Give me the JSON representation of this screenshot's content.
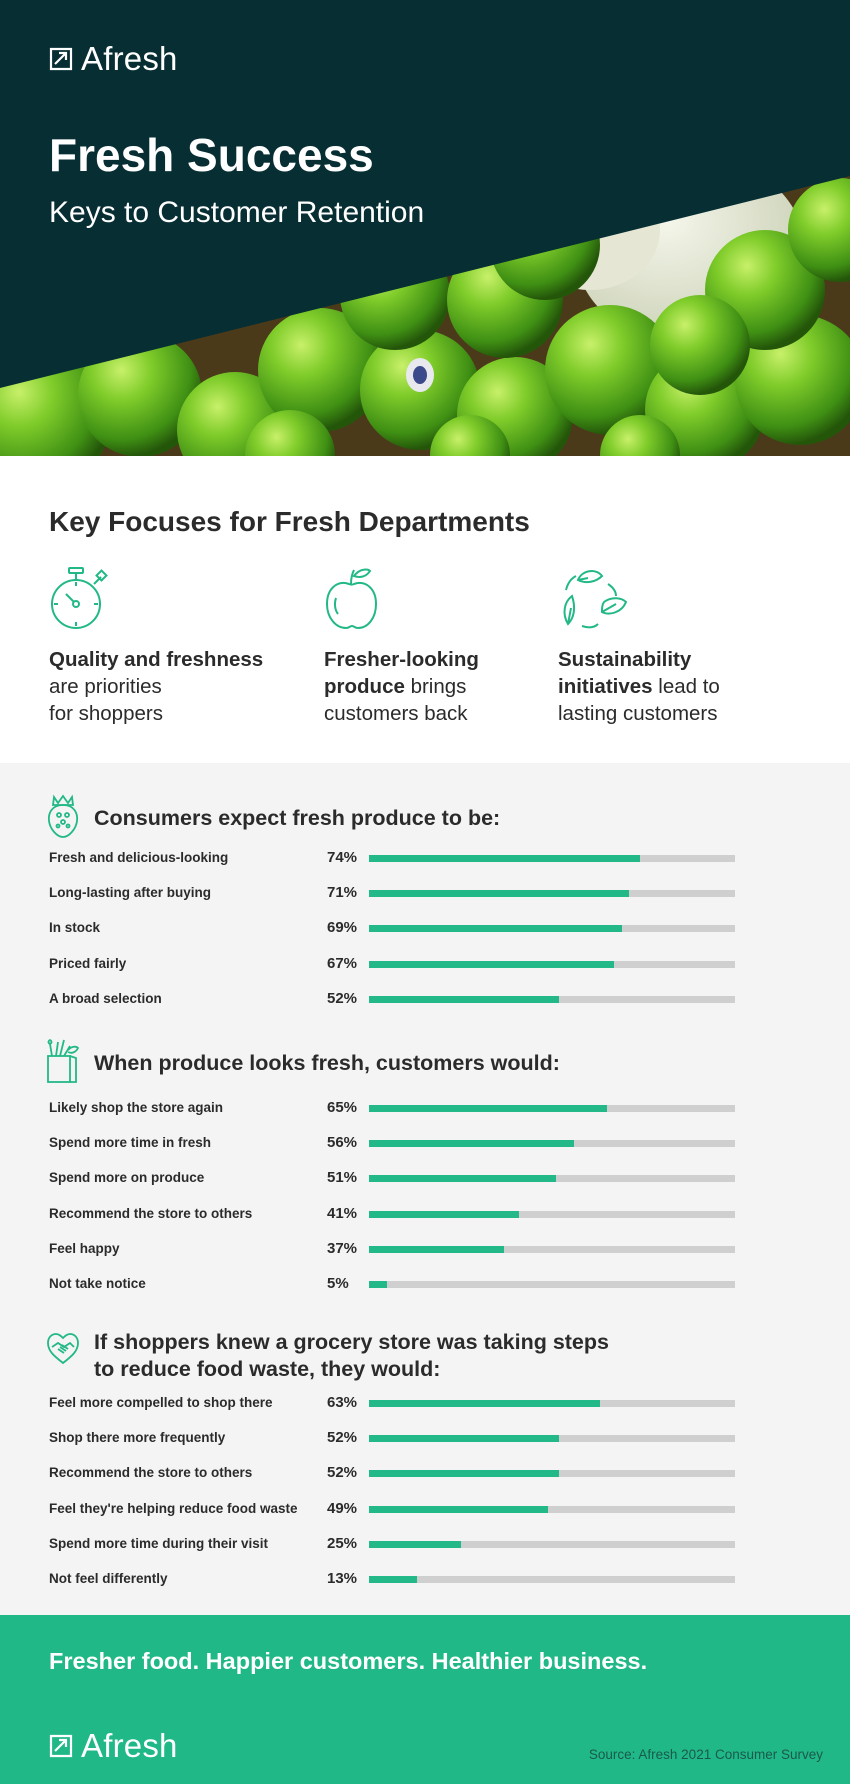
{
  "brand": {
    "name": "Afresh"
  },
  "hero": {
    "title": "Fresh Success",
    "subtitle": "Keys to Customer Retention"
  },
  "focus": {
    "title": "Key Focuses for Fresh Departments",
    "items": [
      {
        "icon": "stopwatch-icon",
        "bold": "Quality and freshness",
        "rest1": "are priorities",
        "rest2": "for shoppers"
      },
      {
        "icon": "apple-icon",
        "bold1": "Fresher-looking",
        "bold2": "produce",
        "rest1": "brings",
        "rest2": "customers back"
      },
      {
        "icon": "recycle-leaves-icon",
        "bold1": "Sustainability",
        "bold2": "initiatives",
        "rest1": "lead to",
        "rest2": "lasting customers"
      }
    ]
  },
  "colors": {
    "accent": "#22b887",
    "track": "#cfcfcf",
    "dark": "#062e33"
  },
  "chart_data": [
    {
      "type": "bar",
      "title": "Consumers expect fresh produce to be:",
      "icon": "strawberry-icon",
      "categories": [
        "Fresh and delicious-looking",
        "Long-lasting after buying",
        "In stock",
        "Priced fairly",
        "A broad selection"
      ],
      "values": [
        74,
        71,
        69,
        67,
        52
      ],
      "labels": [
        "74%",
        "71%",
        "69%",
        "67%",
        "52%"
      ],
      "xlim": [
        0,
        100
      ]
    },
    {
      "type": "bar",
      "title": "When produce looks fresh, customers would:",
      "icon": "grocery-bag-icon",
      "categories": [
        "Likely shop the store again",
        "Spend more time in fresh",
        "Spend more on produce",
        "Recommend the store to others",
        "Feel happy",
        "Not take notice"
      ],
      "values": [
        65,
        56,
        51,
        41,
        37,
        5
      ],
      "labels": [
        "65%",
        "56%",
        "51%",
        "41%",
        "37%",
        "5%"
      ],
      "xlim": [
        0,
        100
      ]
    },
    {
      "type": "bar",
      "title": "If shoppers knew a grocery store was taking steps",
      "title2": "to reduce food waste, they would:",
      "icon": "heart-handshake-icon",
      "categories": [
        "Feel more compelled to shop there",
        "Shop there more frequently",
        "Recommend the store to others",
        "Feel they're helping reduce food waste",
        "Spend more time during their visit",
        "Not feel differently"
      ],
      "values": [
        63,
        52,
        52,
        49,
        25,
        13
      ],
      "labels": [
        "63%",
        "52%",
        "52%",
        "49%",
        "25%",
        "13%"
      ],
      "xlim": [
        0,
        100
      ]
    }
  ],
  "footer": {
    "tagline": "Fresher food. Happier customers. Healthier business.",
    "source": "Source: Afresh 2021 Consumer Survey"
  }
}
